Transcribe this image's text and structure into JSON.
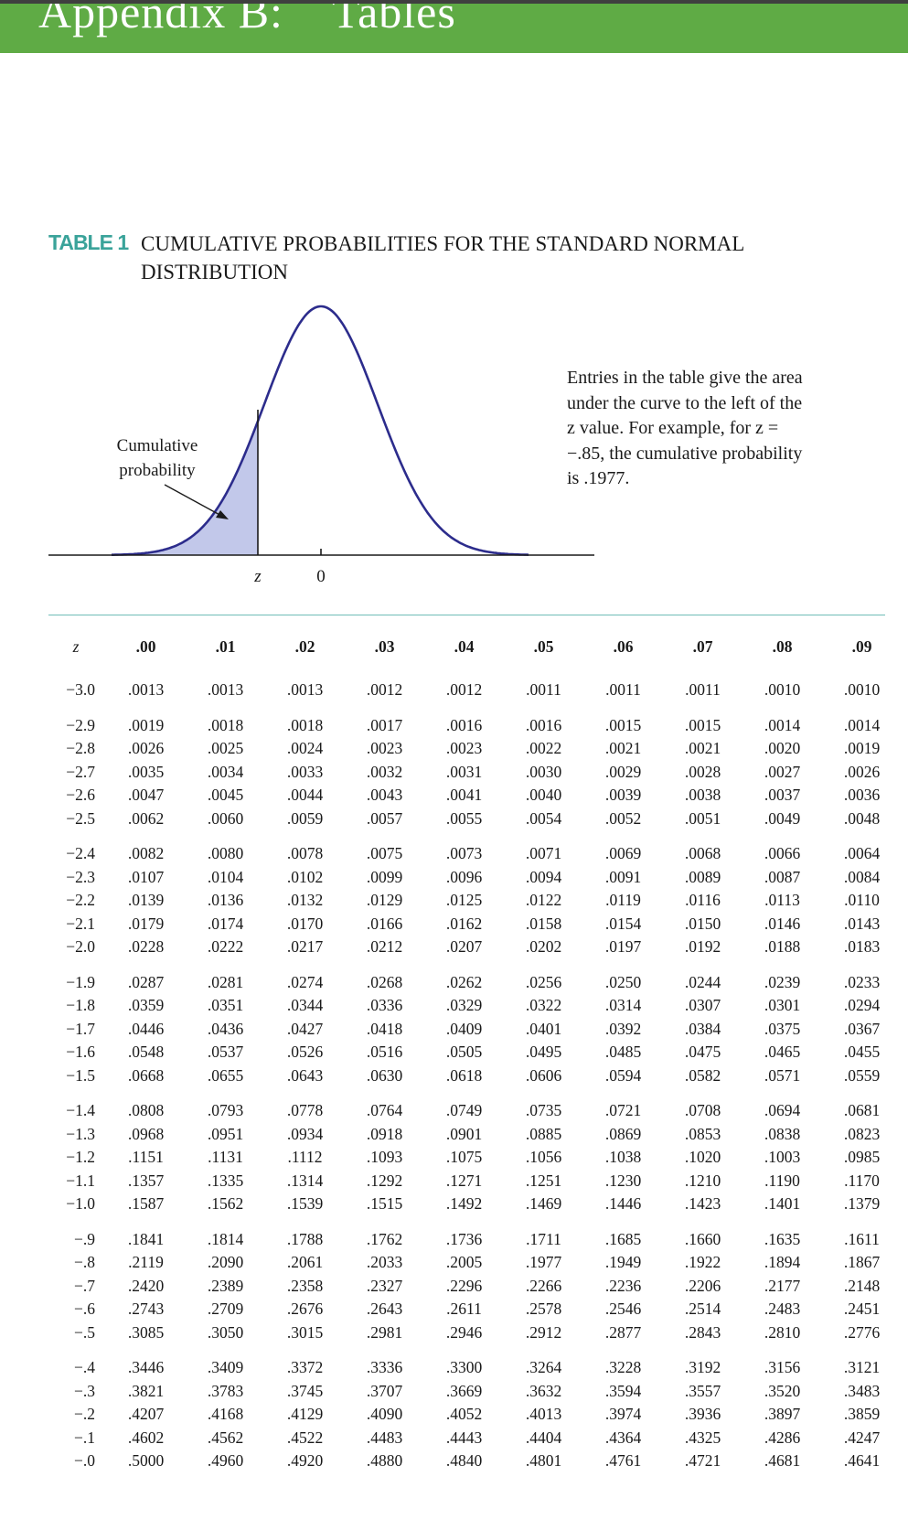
{
  "header": {
    "title": "Appendix B:    Tables"
  },
  "table_label": "TABLE 1",
  "table_title": "CUMULATIVE PROBABILITIES FOR THE STANDARD NORMAL DISTRIBUTION",
  "figure": {
    "annotation": [
      "Cumulative",
      "probability"
    ],
    "axis_label_z": "z",
    "axis_label_zero": "0",
    "shade_color": "#c2c8ea",
    "curve_color": "#2c2c8c"
  },
  "caption": "Entries in the table give the area under the curve to the left of the z value. For example, for z = −.85, the cumulative probability is .1977.",
  "ztable": {
    "headers": [
      "z",
      ".00",
      ".01",
      ".02",
      ".03",
      ".04",
      ".05",
      ".06",
      ".07",
      ".08",
      ".09"
    ],
    "rows": [
      [
        "−3.0",
        ".0013",
        ".0013",
        ".0013",
        ".0012",
        ".0012",
        ".0011",
        ".0011",
        ".0011",
        ".0010",
        ".0010"
      ],
      [
        "−2.9",
        ".0019",
        ".0018",
        ".0018",
        ".0017",
        ".0016",
        ".0016",
        ".0015",
        ".0015",
        ".0014",
        ".0014"
      ],
      [
        "−2.8",
        ".0026",
        ".0025",
        ".0024",
        ".0023",
        ".0023",
        ".0022",
        ".0021",
        ".0021",
        ".0020",
        ".0019"
      ],
      [
        "−2.7",
        ".0035",
        ".0034",
        ".0033",
        ".0032",
        ".0031",
        ".0030",
        ".0029",
        ".0028",
        ".0027",
        ".0026"
      ],
      [
        "−2.6",
        ".0047",
        ".0045",
        ".0044",
        ".0043",
        ".0041",
        ".0040",
        ".0039",
        ".0038",
        ".0037",
        ".0036"
      ],
      [
        "−2.5",
        ".0062",
        ".0060",
        ".0059",
        ".0057",
        ".0055",
        ".0054",
        ".0052",
        ".0051",
        ".0049",
        ".0048"
      ],
      [
        "−2.4",
        ".0082",
        ".0080",
        ".0078",
        ".0075",
        ".0073",
        ".0071",
        ".0069",
        ".0068",
        ".0066",
        ".0064"
      ],
      [
        "−2.3",
        ".0107",
        ".0104",
        ".0102",
        ".0099",
        ".0096",
        ".0094",
        ".0091",
        ".0089",
        ".0087",
        ".0084"
      ],
      [
        "−2.2",
        ".0139",
        ".0136",
        ".0132",
        ".0129",
        ".0125",
        ".0122",
        ".0119",
        ".0116",
        ".0113",
        ".0110"
      ],
      [
        "−2.1",
        ".0179",
        ".0174",
        ".0170",
        ".0166",
        ".0162",
        ".0158",
        ".0154",
        ".0150",
        ".0146",
        ".0143"
      ],
      [
        "−2.0",
        ".0228",
        ".0222",
        ".0217",
        ".0212",
        ".0207",
        ".0202",
        ".0197",
        ".0192",
        ".0188",
        ".0183"
      ],
      [
        "−1.9",
        ".0287",
        ".0281",
        ".0274",
        ".0268",
        ".0262",
        ".0256",
        ".0250",
        ".0244",
        ".0239",
        ".0233"
      ],
      [
        "−1.8",
        ".0359",
        ".0351",
        ".0344",
        ".0336",
        ".0329",
        ".0322",
        ".0314",
        ".0307",
        ".0301",
        ".0294"
      ],
      [
        "−1.7",
        ".0446",
        ".0436",
        ".0427",
        ".0418",
        ".0409",
        ".0401",
        ".0392",
        ".0384",
        ".0375",
        ".0367"
      ],
      [
        "−1.6",
        ".0548",
        ".0537",
        ".0526",
        ".0516",
        ".0505",
        ".0495",
        ".0485",
        ".0475",
        ".0465",
        ".0455"
      ],
      [
        "−1.5",
        ".0668",
        ".0655",
        ".0643",
        ".0630",
        ".0618",
        ".0606",
        ".0594",
        ".0582",
        ".0571",
        ".0559"
      ],
      [
        "−1.4",
        ".0808",
        ".0793",
        ".0778",
        ".0764",
        ".0749",
        ".0735",
        ".0721",
        ".0708",
        ".0694",
        ".0681"
      ],
      [
        "−1.3",
        ".0968",
        ".0951",
        ".0934",
        ".0918",
        ".0901",
        ".0885",
        ".0869",
        ".0853",
        ".0838",
        ".0823"
      ],
      [
        "−1.2",
        ".1151",
        ".1131",
        ".1112",
        ".1093",
        ".1075",
        ".1056",
        ".1038",
        ".1020",
        ".1003",
        ".0985"
      ],
      [
        "−1.1",
        ".1357",
        ".1335",
        ".1314",
        ".1292",
        ".1271",
        ".1251",
        ".1230",
        ".1210",
        ".1190",
        ".1170"
      ],
      [
        "−1.0",
        ".1587",
        ".1562",
        ".1539",
        ".1515",
        ".1492",
        ".1469",
        ".1446",
        ".1423",
        ".1401",
        ".1379"
      ],
      [
        "−.9",
        ".1841",
        ".1814",
        ".1788",
        ".1762",
        ".1736",
        ".1711",
        ".1685",
        ".1660",
        ".1635",
        ".1611"
      ],
      [
        "−.8",
        ".2119",
        ".2090",
        ".2061",
        ".2033",
        ".2005",
        ".1977",
        ".1949",
        ".1922",
        ".1894",
        ".1867"
      ],
      [
        "−.7",
        ".2420",
        ".2389",
        ".2358",
        ".2327",
        ".2296",
        ".2266",
        ".2236",
        ".2206",
        ".2177",
        ".2148"
      ],
      [
        "−.6",
        ".2743",
        ".2709",
        ".2676",
        ".2643",
        ".2611",
        ".2578",
        ".2546",
        ".2514",
        ".2483",
        ".2451"
      ],
      [
        "−.5",
        ".3085",
        ".3050",
        ".3015",
        ".2981",
        ".2946",
        ".2912",
        ".2877",
        ".2843",
        ".2810",
        ".2776"
      ],
      [
        "−.4",
        ".3446",
        ".3409",
        ".3372",
        ".3336",
        ".3300",
        ".3264",
        ".3228",
        ".3192",
        ".3156",
        ".3121"
      ],
      [
        "−.3",
        ".3821",
        ".3783",
        ".3745",
        ".3707",
        ".3669",
        ".3632",
        ".3594",
        ".3557",
        ".3520",
        ".3483"
      ],
      [
        "−.2",
        ".4207",
        ".4168",
        ".4129",
        ".4090",
        ".4052",
        ".4013",
        ".3974",
        ".3936",
        ".3897",
        ".3859"
      ],
      [
        "−.1",
        ".4602",
        ".4562",
        ".4522",
        ".4483",
        ".4443",
        ".4404",
        ".4364",
        ".4325",
        ".4286",
        ".4247"
      ],
      [
        "−.0",
        ".5000",
        ".4960",
        ".4920",
        ".4880",
        ".4840",
        ".4801",
        ".4761",
        ".4721",
        ".4681",
        ".4641"
      ]
    ]
  }
}
